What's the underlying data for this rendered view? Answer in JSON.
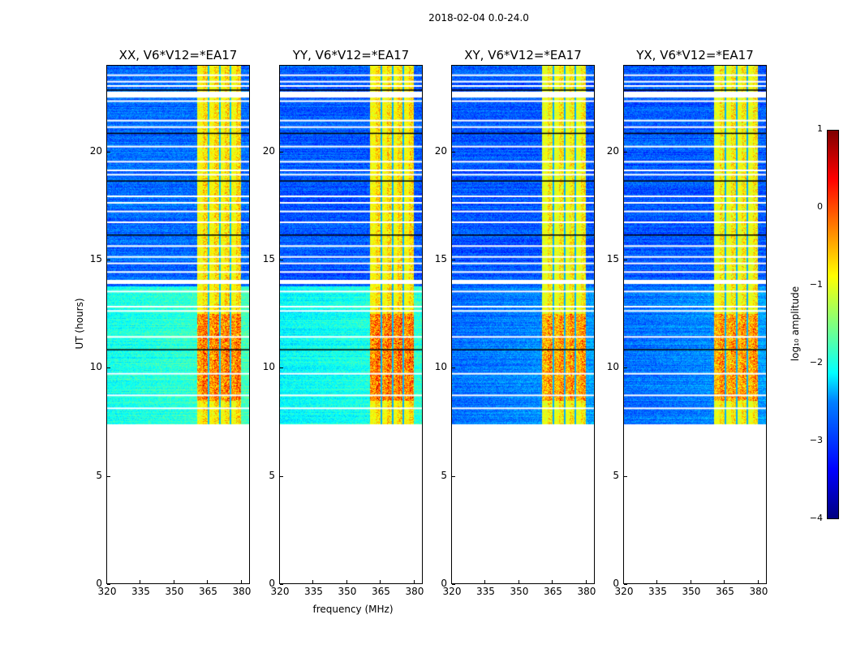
{
  "chart_data": {
    "type": "heatmap",
    "suptitle": "2018-02-04 0.0-24.0",
    "xlabel": "frequency (MHz)",
    "ylabel": "UT (hours)",
    "xlim": [
      320,
      384
    ],
    "ylim": [
      0,
      24
    ],
    "xticks": [
      320,
      335,
      350,
      365,
      380
    ],
    "yticks": [
      0,
      5,
      10,
      15,
      20
    ],
    "data_time_range": [
      7.4,
      24
    ],
    "rfi_band_mhz": [
      360.5,
      380
    ],
    "band_divider_mhz": [
      365.5,
      370.5,
      375.5
    ],
    "flagged_rows_ut": [
      23.6,
      23.3,
      23.1,
      22.9,
      22.6,
      22.4,
      21.5,
      21.2,
      20.9,
      20.3,
      19.6,
      19.2,
      19.0,
      18.7,
      18.0,
      17.7,
      17.3,
      16.8,
      16.2,
      15.7,
      15.2,
      14.9,
      14.5,
      14.1,
      13.6,
      12.9,
      12.7,
      11.5,
      10.9,
      9.8,
      8.8,
      8.2
    ],
    "panels": [
      {
        "title": "XX, V6*V12=*EA17",
        "background_log_amp": -3.0,
        "early_background_log_amp": -2.2,
        "band_log_amp": -1.0,
        "peak_log_amp": 0.3
      },
      {
        "title": "YY, V6*V12=*EA17",
        "background_log_amp": -3.1,
        "early_background_log_amp": -2.3,
        "band_log_amp": -1.0,
        "peak_log_amp": 0.4
      },
      {
        "title": "XY, V6*V12=*EA17",
        "background_log_amp": -3.1,
        "early_background_log_amp": -3.0,
        "band_log_amp": -1.1,
        "peak_log_amp": 0.1
      },
      {
        "title": "YX, V6*V12=*EA17",
        "background_log_amp": -3.1,
        "early_background_log_amp": -3.0,
        "band_log_amp": -1.1,
        "peak_log_amp": 0.1
      }
    ],
    "colorbar": {
      "label": "log₁₀ amplitude",
      "range": [
        -4,
        1
      ],
      "ticks": [
        "1",
        "0",
        "−1",
        "−2",
        "−3",
        "−4"
      ],
      "colormap": "jet"
    }
  }
}
